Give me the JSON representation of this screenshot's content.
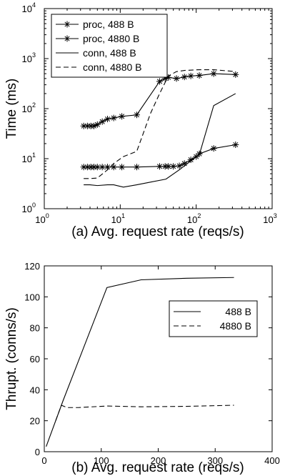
{
  "chart_data": [
    {
      "type": "line",
      "xscale": "log",
      "yscale": "log",
      "xlabel": "(a) Avg. request rate (reqs/s)",
      "ylabel": "Time (ms)",
      "xlim": [
        1,
        1000
      ],
      "ylim": [
        1,
        10000
      ],
      "xticks": [
        {
          "base": "10",
          "exp": "0",
          "value": 1
        },
        {
          "base": "10",
          "exp": "1",
          "value": 10
        },
        {
          "base": "10",
          "exp": "2",
          "value": 100
        },
        {
          "base": "10",
          "exp": "3",
          "value": 1000
        }
      ],
      "yticks": [
        {
          "base": "10",
          "exp": "0",
          "value": 1
        },
        {
          "base": "10",
          "exp": "1",
          "value": 10
        },
        {
          "base": "10",
          "exp": "2",
          "value": 100
        },
        {
          "base": "10",
          "exp": "3",
          "value": 1000
        },
        {
          "base": "10",
          "exp": "4",
          "value": 10000
        }
      ],
      "legend_position": "top-left",
      "series": [
        {
          "name": "proc,   488 B",
          "style": "solid-star",
          "x": [
            3.3,
            3.7,
            4.1,
            4.5,
            5.0,
            5.8,
            6.8,
            8.2,
            10.5,
            16.5,
            33,
            39,
            43,
            50,
            60,
            70,
            85,
            100,
            110,
            170,
            330
          ],
          "y": [
            6.8,
            6.8,
            6.8,
            6.8,
            6.8,
            6.8,
            6.8,
            6.8,
            6.8,
            6.8,
            7.0,
            7.0,
            7.0,
            7.0,
            7.2,
            8.0,
            9.5,
            11.0,
            12.5,
            16.0,
            19.0
          ]
        },
        {
          "name": "proc,  4880 B",
          "style": "solid-star",
          "x": [
            3.3,
            3.7,
            4.1,
            4.5,
            5.0,
            5.8,
            6.8,
            8.2,
            10.5,
            16.5,
            33,
            39,
            43,
            55,
            70,
            85,
            110,
            170,
            330
          ],
          "y": [
            45,
            45,
            45,
            45,
            48,
            55,
            62,
            65,
            70,
            75,
            350,
            400,
            420,
            400,
            430,
            450,
            460,
            500,
            480
          ]
        },
        {
          "name": "conn,   488 B",
          "style": "solid",
          "x": [
            3.3,
            4.0,
            5.0,
            6.8,
            8.2,
            11,
            16.5,
            25,
            40,
            60,
            85,
            110,
            170,
            330
          ],
          "y": [
            3.0,
            3.0,
            2.9,
            3.0,
            3.0,
            2.7,
            3.0,
            3.4,
            3.9,
            6.0,
            9.0,
            12.0,
            115,
            200
          ]
        },
        {
          "name": "conn, 4880 B",
          "style": "dashed",
          "x": [
            3.3,
            4.0,
            5.0,
            6.8,
            8.2,
            11,
            16.5,
            25,
            33,
            43,
            55,
            70,
            110,
            170,
            330
          ],
          "y": [
            4.0,
            4.0,
            4.1,
            6.0,
            8.0,
            11.0,
            14.0,
            80,
            200,
            450,
            550,
            580,
            600,
            600,
            550
          ]
        }
      ]
    },
    {
      "type": "line",
      "xlabel": "(b) Avg. request rate (reqs/s)",
      "ylabel": "Thrupt. (conns/s)",
      "xlim": [
        0,
        400
      ],
      "ylim": [
        0,
        120
      ],
      "xticks": [
        "0",
        "100",
        "200",
        "300",
        "400"
      ],
      "yticks": [
        "0",
        "20",
        "40",
        "60",
        "80",
        "100",
        "120"
      ],
      "legend_position": "center-right",
      "series": [
        {
          "name": "488 B",
          "style": "solid",
          "x": [
            3.3,
            33,
            110,
            170,
            250,
            333
          ],
          "y": [
            3.3,
            33,
            106,
            111,
            112,
            112.5
          ]
        },
        {
          "name": "4880 B",
          "style": "dashed",
          "x": [
            20,
            30,
            40,
            60,
            110,
            170,
            250,
            333
          ],
          "y": [
            20,
            30,
            28.5,
            28.5,
            29.5,
            29.0,
            29.3,
            30.0
          ]
        }
      ]
    }
  ]
}
